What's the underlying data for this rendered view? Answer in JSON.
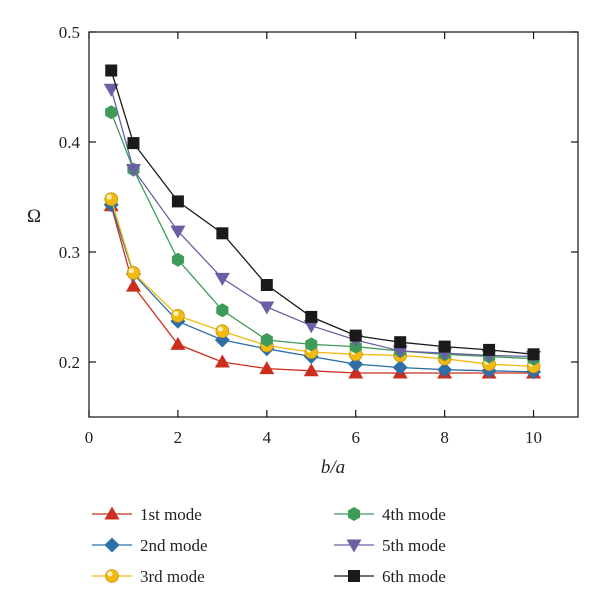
{
  "chart_data": {
    "type": "line",
    "title": "",
    "xlabel": "b/a",
    "ylabel": "Ω",
    "xlim": [
      0,
      11
    ],
    "ylim": [
      0.15,
      0.5
    ],
    "xticks": [
      0,
      2,
      4,
      6,
      8,
      10
    ],
    "xtick_labels": [
      "0",
      "2",
      "4",
      "6",
      "8",
      "10"
    ],
    "yticks": [
      0.2,
      0.3,
      0.4,
      0.5
    ],
    "ytick_labels": [
      "0.2",
      "0.3",
      "0.4",
      "0.5"
    ],
    "x": [
      0.5,
      1,
      2,
      3,
      4,
      5,
      6,
      7,
      8,
      9,
      10
    ],
    "grid": false,
    "legend_position": "bottom",
    "series": [
      {
        "name": "1st mode",
        "color": "#cc2e1e",
        "marker": "triangle-up",
        "values": [
          0.342,
          0.269,
          0.216,
          0.2,
          0.194,
          0.192,
          0.19,
          0.19,
          0.19,
          0.19,
          0.19
        ]
      },
      {
        "name": "2nd mode",
        "color": "#2e6fa8",
        "marker": "diamond",
        "values": [
          0.343,
          0.28,
          0.237,
          0.22,
          0.212,
          0.205,
          0.198,
          0.195,
          0.193,
          0.192,
          0.191
        ]
      },
      {
        "name": "3rd mode",
        "color": "#f2b90f",
        "marker": "sphere",
        "values": [
          0.348,
          0.281,
          0.242,
          0.228,
          0.215,
          0.209,
          0.207,
          0.206,
          0.203,
          0.198,
          0.196
        ]
      },
      {
        "name": "4th mode",
        "color": "#3f9b58",
        "marker": "hexagon",
        "values": [
          0.427,
          0.375,
          0.293,
          0.247,
          0.22,
          0.216,
          0.214,
          0.21,
          0.207,
          0.205,
          0.203
        ]
      },
      {
        "name": "5th mode",
        "color": "#6a5fa5",
        "marker": "triangle-down",
        "values": [
          0.448,
          0.375,
          0.319,
          0.276,
          0.25,
          0.233,
          0.22,
          0.21,
          0.208,
          0.206,
          0.205
        ]
      },
      {
        "name": "6th mode",
        "color": "#1a1a1a",
        "marker": "square",
        "values": [
          0.465,
          0.399,
          0.346,
          0.317,
          0.27,
          0.241,
          0.224,
          0.218,
          0.214,
          0.211,
          0.207
        ]
      }
    ]
  }
}
